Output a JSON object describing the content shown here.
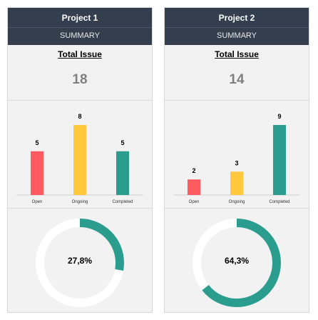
{
  "projects": [
    {
      "title": "Project 1",
      "subtitle": "SUMMARY",
      "total_issue_label": "Total Issue",
      "total_issue_value": "18",
      "chart_data": {
        "type": "bar",
        "categories": [
          "Open",
          "Ongoing",
          "Completed"
        ],
        "values": [
          5,
          8,
          5
        ],
        "colors": [
          "#ff5a5f",
          "#ffc83d",
          "#2a9d8f"
        ],
        "ylim": [
          0,
          8
        ]
      },
      "completion": {
        "fraction": 0.278,
        "label": "27,8%",
        "color": "#2a9d8f"
      }
    },
    {
      "title": "Project 2",
      "subtitle": "SUMMARY",
      "total_issue_label": "Total Issue",
      "total_issue_value": "14",
      "chart_data": {
        "type": "bar",
        "categories": [
          "Open",
          "Ongoing",
          "Completed"
        ],
        "values": [
          2,
          3,
          9
        ],
        "colors": [
          "#ff5a5f",
          "#ffc83d",
          "#2a9d8f"
        ],
        "ylim": [
          0,
          9
        ]
      },
      "completion": {
        "fraction": 0.643,
        "label": "64,3%",
        "color": "#2a9d8f"
      }
    }
  ]
}
